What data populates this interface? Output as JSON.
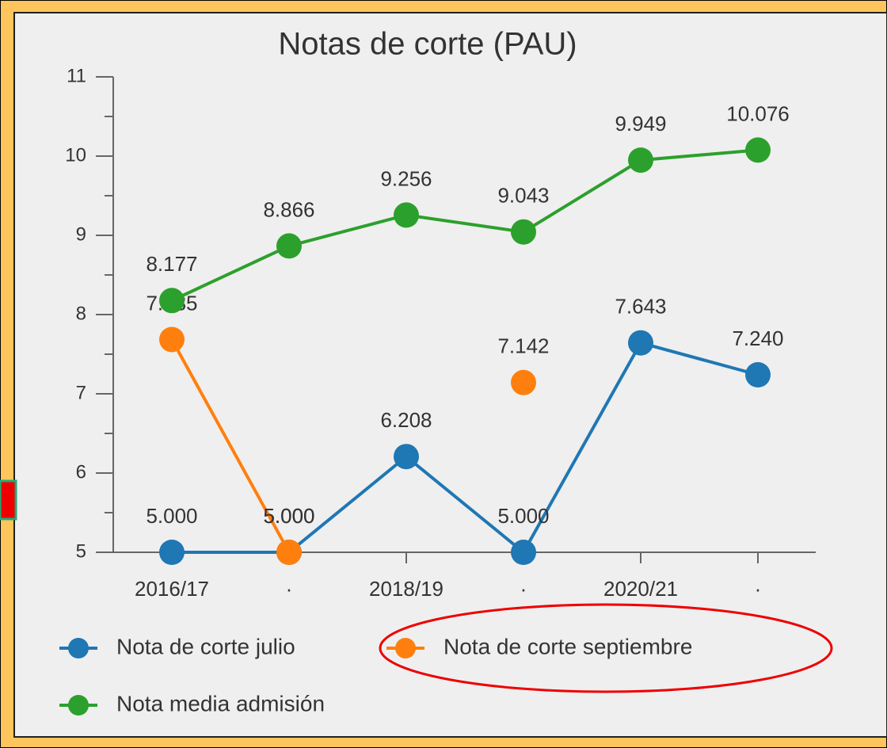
{
  "chart_data": {
    "type": "line",
    "title": "Notas de corte (PAU)",
    "categories": [
      "2016/17",
      "·",
      "2018/19",
      "·",
      "2020/21",
      "·"
    ],
    "series": [
      {
        "name": "Nota de corte julio",
        "color": "#1f77b4",
        "values": [
          5,
          5,
          6.208,
          5,
          7.643,
          7.24
        ],
        "value_labels": [
          "5.000",
          "5.000",
          "6.208",
          "5.000",
          "7.643",
          "7.240"
        ]
      },
      {
        "name": "Nota de corte septiembre",
        "color": "#ff7f0e",
        "values": [
          7.685,
          5,
          null,
          7.142,
          null,
          null
        ],
        "value_labels": [
          "7.685",
          "5.000",
          null,
          "7.142",
          null,
          null
        ]
      },
      {
        "name": "Nota media admisión",
        "color": "#2ca02c",
        "values": [
          8.177,
          8.866,
          9.256,
          9.043,
          9.949,
          10.076
        ],
        "value_labels": [
          "8.177",
          "8.866",
          "9.256",
          "9.043",
          "9.949",
          "10.076"
        ]
      }
    ],
    "ylim": [
      5,
      11
    ],
    "yticks": [
      5,
      6,
      7,
      8,
      9,
      10,
      11
    ]
  }
}
